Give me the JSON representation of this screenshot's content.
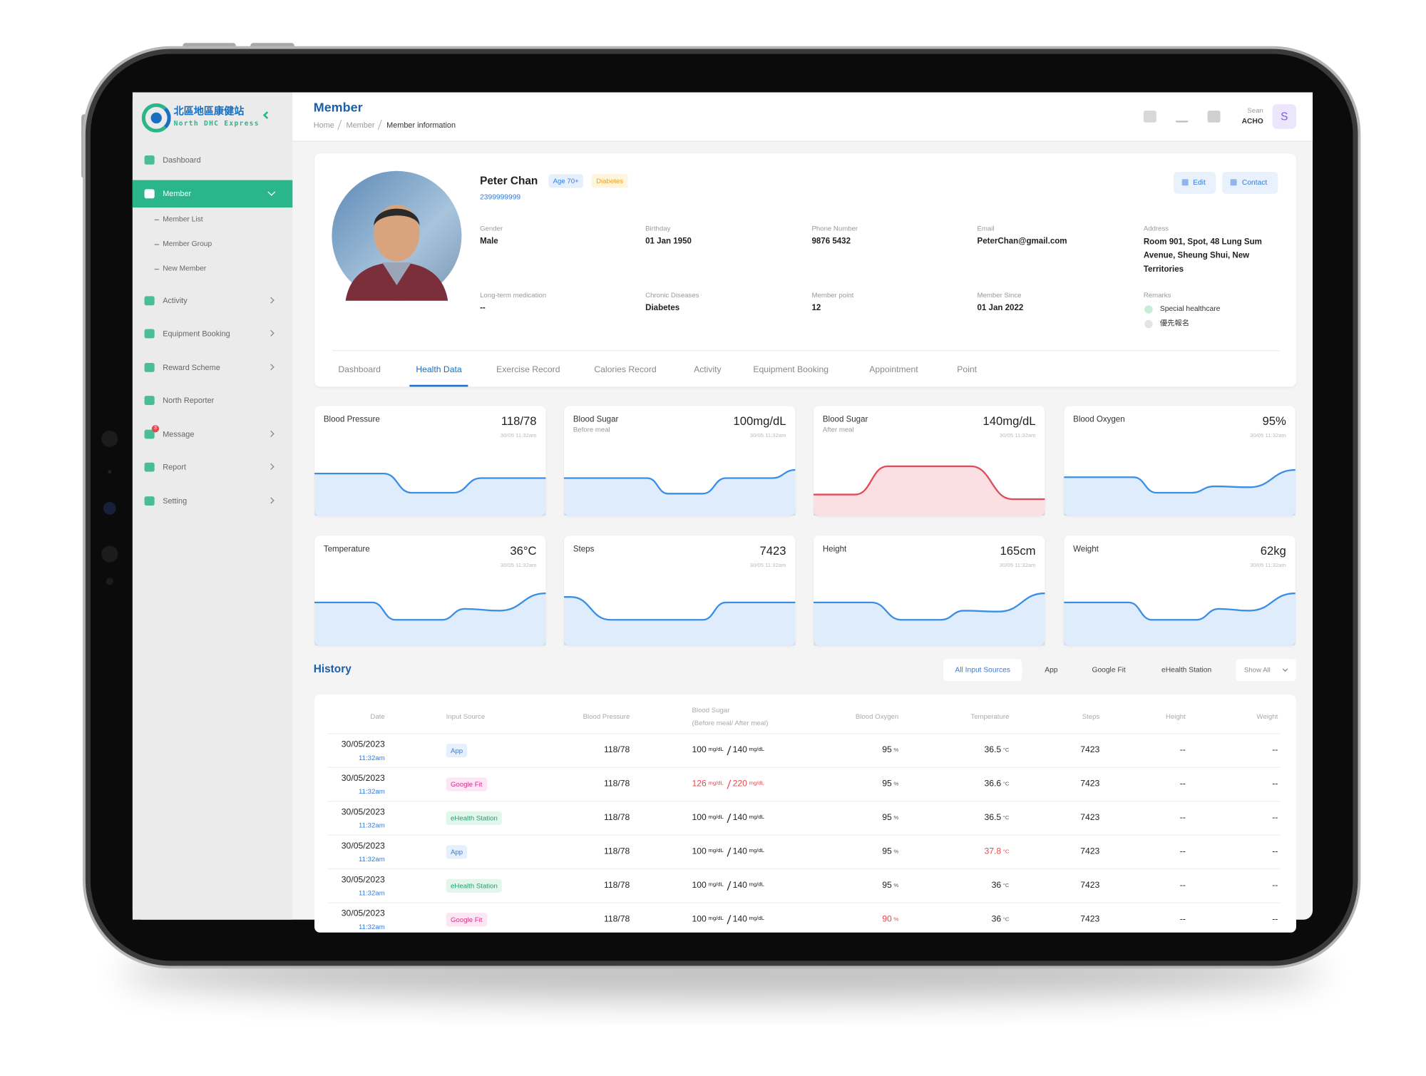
{
  "logo": {
    "chinese": "北區地區康健站",
    "english": "North DHC Express"
  },
  "sidebar": {
    "items": [
      {
        "label": "Dashboard"
      },
      {
        "label": "Member",
        "active": true,
        "children": [
          "Member List",
          "Member Group",
          "New Member"
        ]
      },
      {
        "label": "Activity",
        "expandable": true
      },
      {
        "label": "Equipment Booking",
        "expandable": true
      },
      {
        "label": "Reward Scheme",
        "expandable": true
      },
      {
        "label": "North Reporter"
      },
      {
        "label": "Message",
        "expandable": true,
        "badge": 3
      },
      {
        "label": "Report",
        "expandable": true
      },
      {
        "label": "Setting",
        "expandable": true
      }
    ]
  },
  "header": {
    "title": "Member",
    "breadcrumb": [
      "Home",
      "Member",
      "Member information"
    ],
    "user": {
      "name": "Sean",
      "org": "ACHO",
      "initial": "S"
    }
  },
  "profile": {
    "name": "Peter Chan",
    "tags": [
      "Age 70+",
      "Diabetes"
    ],
    "id": "2399999999",
    "buttons": [
      "Edit",
      "Contact"
    ],
    "fields": [
      {
        "label": "Gender",
        "value": "Male"
      },
      {
        "label": "Birthday",
        "value": "01 Jan 1950"
      },
      {
        "label": "Phone Number",
        "value": "9876 5432"
      },
      {
        "label": "Email",
        "value": "PeterChan@gmail.com"
      },
      {
        "label": "Address",
        "value": "Room 901, Spot, 48 Lung Sum Avenue, Sheung Shui, New Territories"
      },
      {
        "label": "Long-term medication",
        "value": "--"
      },
      {
        "label": "Chronic Diseases",
        "value": "Diabetes"
      },
      {
        "label": "Member point",
        "value": "12"
      },
      {
        "label": "Member Since",
        "value": "01 Jan 2022"
      }
    ],
    "remarks": {
      "label": "Remarks",
      "items": [
        {
          "text": "Special healthcare",
          "checked": true
        },
        {
          "text": "優先報名",
          "checked": false
        }
      ]
    }
  },
  "tabs": {
    "items": [
      "Dashboard",
      "Health Data",
      "Exercise Record",
      "Calories Record",
      "Activity",
      "Equipment Booking",
      "Appointment",
      "Point"
    ],
    "active": 1
  },
  "cards": [
    {
      "title": "Blood Pressure",
      "value": "118/78",
      "time": "30/05 11:32am",
      "color": "#3a8ee6"
    },
    {
      "title": "Blood Sugar",
      "subtitle": "Before meal",
      "value": "100mg/dL",
      "time": "30/05 11:32am",
      "color": "#3a8ee6"
    },
    {
      "title": "Blood Sugar",
      "subtitle": "After meal",
      "value": "140mg/dL",
      "time": "30/05 11:32am",
      "color": "#e04a5a"
    },
    {
      "title": "Blood Oxygen",
      "value": "95%",
      "time": "30/05 11:32am",
      "color": "#3a8ee6"
    },
    {
      "title": "Temperature",
      "value": "36°C",
      "time": "30/05 11:32am",
      "color": "#3a8ee6"
    },
    {
      "title": "Steps",
      "value": "7423",
      "time": "30/05 11:32am",
      "color": "#3a8ee6"
    },
    {
      "title": "Height",
      "value": "165cm",
      "time": "30/05 11:32am",
      "color": "#3a8ee6"
    },
    {
      "title": "Weight",
      "value": "62kg",
      "time": "30/05 11:32am",
      "color": "#3a8ee6"
    }
  ],
  "history": {
    "title": "History",
    "filters": [
      "All Input Sources",
      "App",
      "Google Fit",
      "eHealth Station"
    ],
    "active_filter": 0,
    "dropdown": "Show All",
    "columns": [
      {
        "label": "Date"
      },
      {
        "label": "Input Source"
      },
      {
        "label": "Blood Pressure"
      },
      {
        "label": "Blood Sugar",
        "sublabel": "(Before meal/ After meal)"
      },
      {
        "label": "Blood Oxygen"
      },
      {
        "label": "Temperature"
      },
      {
        "label": "Steps"
      },
      {
        "label": "Height"
      },
      {
        "label": "Weight"
      }
    ],
    "units": {
      "blood_sugar": "mg/dL",
      "blood_oxygen": "%",
      "temperature": "°C"
    },
    "rows": [
      {
        "date": "30/05/2023",
        "time": "11:32am",
        "source": "App",
        "blood_pressure": "118/78",
        "sugar_before": 100,
        "sugar_after": 140,
        "blood_oxygen": 95,
        "temperature": 36.5,
        "steps": 7423,
        "height": "--",
        "weight": "--",
        "alerts": []
      },
      {
        "date": "30/05/2023",
        "time": "11:32am",
        "source": "Google Fit",
        "blood_pressure": "118/78",
        "sugar_before": 126,
        "sugar_after": 220,
        "blood_oxygen": 95,
        "temperature": 36.6,
        "steps": 7423,
        "height": "--",
        "weight": "--",
        "alerts": [
          "blood_sugar"
        ]
      },
      {
        "date": "30/05/2023",
        "time": "11:32am",
        "source": "eHealth Station",
        "blood_pressure": "118/78",
        "sugar_before": 100,
        "sugar_after": 140,
        "blood_oxygen": 95,
        "temperature": 36.5,
        "steps": 7423,
        "height": "--",
        "weight": "--",
        "alerts": []
      },
      {
        "date": "30/05/2023",
        "time": "11:32am",
        "source": "App",
        "blood_pressure": "118/78",
        "sugar_before": 100,
        "sugar_after": 140,
        "blood_oxygen": 95,
        "temperature": 37.8,
        "steps": 7423,
        "height": "--",
        "weight": "--",
        "alerts": [
          "temperature"
        ]
      },
      {
        "date": "30/05/2023",
        "time": "11:32am",
        "source": "eHealth Station",
        "blood_pressure": "118/78",
        "sugar_before": 100,
        "sugar_after": 140,
        "blood_oxygen": 95,
        "temperature": 36,
        "steps": 7423,
        "height": "--",
        "weight": "--",
        "alerts": []
      },
      {
        "date": "30/05/2023",
        "time": "11:32am",
        "source": "Google Fit",
        "blood_pressure": "118/78",
        "sugar_before": 100,
        "sugar_after": 140,
        "blood_oxygen": 90,
        "temperature": 36,
        "steps": 7423,
        "height": "--",
        "weight": "--",
        "alerts": [
          "blood_oxygen"
        ]
      }
    ]
  }
}
